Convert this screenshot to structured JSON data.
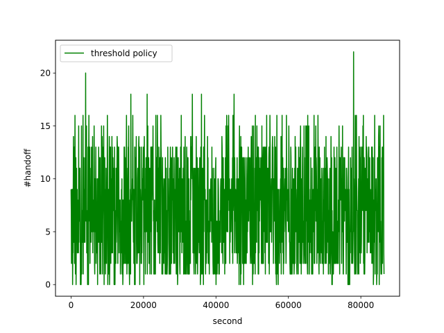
{
  "chart_data": {
    "type": "line",
    "title": "",
    "xlabel": "second",
    "ylabel": "#handoff",
    "xlim": [
      -4300,
      90700
    ],
    "ylim": [
      -1.1,
      23.1
    ],
    "x_ticks": [
      0,
      20000,
      40000,
      60000,
      80000
    ],
    "x_tick_labels": [
      "0",
      "20000",
      "40000",
      "60000",
      "80000"
    ],
    "y_ticks": [
      0,
      5,
      10,
      15,
      20
    ],
    "y_tick_labels": [
      "0",
      "5",
      "10",
      "15",
      "20"
    ],
    "grid": false,
    "legend": {
      "position": "top-left"
    },
    "series": [
      {
        "name": "threshold policy",
        "color": "#008000",
        "x_start": 0,
        "x_end": 86400,
        "x_step": 60,
        "typical_range": [
          1,
          15
        ],
        "notable_points": [
          {
            "x": 4000,
            "y": 20
          },
          {
            "x": 16500,
            "y": 18
          },
          {
            "x": 21000,
            "y": 18
          },
          {
            "x": 33500,
            "y": 18
          },
          {
            "x": 36000,
            "y": 18
          },
          {
            "x": 45000,
            "y": 18
          },
          {
            "x": 78000,
            "y": 22
          }
        ]
      }
    ]
  }
}
